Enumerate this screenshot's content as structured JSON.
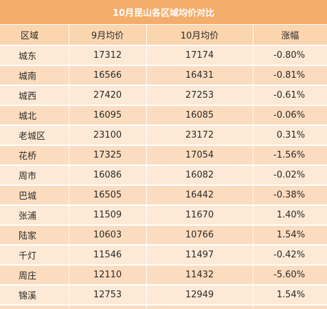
{
  "title": "10月昆山各区域均价对比",
  "columns": {
    "region": "区域",
    "sep_price": "9月均价",
    "oct_price": "10月均价",
    "change": "涨幅"
  },
  "rows": [
    {
      "region": "城东",
      "sep_price": "17312",
      "oct_price": "17174",
      "change": "-0.80%"
    },
    {
      "region": "城南",
      "sep_price": "16566",
      "oct_price": "16431",
      "change": "-0.81%"
    },
    {
      "region": "城西",
      "sep_price": "27420",
      "oct_price": "27253",
      "change": "-0.61%"
    },
    {
      "region": "城北",
      "sep_price": "16095",
      "oct_price": "16085",
      "change": "-0.06%"
    },
    {
      "region": "老城区",
      "sep_price": "23100",
      "oct_price": "23172",
      "change": "0.31%"
    },
    {
      "region": "花桥",
      "sep_price": "17325",
      "oct_price": "17054",
      "change": "-1.56%"
    },
    {
      "region": "周市",
      "sep_price": "16086",
      "oct_price": "16082",
      "change": "-0.02%"
    },
    {
      "region": "巴城",
      "sep_price": "16505",
      "oct_price": "16442",
      "change": "-0.38%"
    },
    {
      "region": "张浦",
      "sep_price": "11509",
      "oct_price": "11670",
      "change": "1.40%"
    },
    {
      "region": "陆家",
      "sep_price": "10603",
      "oct_price": "10766",
      "change": "1.54%"
    },
    {
      "region": "千灯",
      "sep_price": "11546",
      "oct_price": "11497",
      "change": "-0.42%"
    },
    {
      "region": "周庄",
      "sep_price": "12110",
      "oct_price": "11432",
      "change": "-5.60%"
    },
    {
      "region": "锦溪",
      "sep_price": "12753",
      "oct_price": "12949",
      "change": "1.54%"
    }
  ],
  "colors": {
    "title_bg": "#f4ad6b",
    "header_bg": "#fbd5ae",
    "row_light": "#fde9d6",
    "row_dark": "#fcdcbe"
  }
}
